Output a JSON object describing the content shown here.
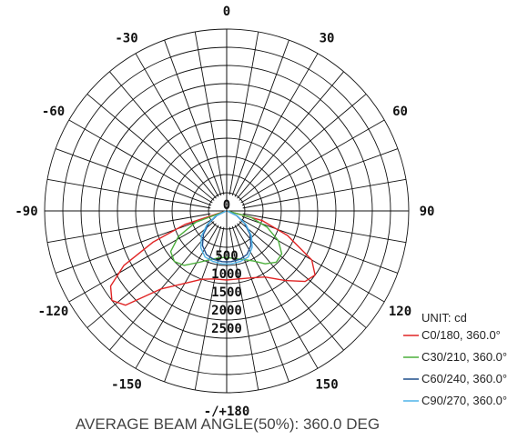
{
  "chart_data": {
    "type": "polar",
    "center_label": "0",
    "radial_ticks": [
      {
        "value": 500,
        "label": "500"
      },
      {
        "value": 1000,
        "label": "1000"
      },
      {
        "value": 1500,
        "label": "1500"
      },
      {
        "value": 2000,
        "label": "2000"
      },
      {
        "value": 2500,
        "label": "2500"
      }
    ],
    "r_max": 2500,
    "angle_labels": [
      {
        "angle": 180,
        "label": "-/+180"
      },
      {
        "angle": 150,
        "label": "150"
      },
      {
        "angle": -150,
        "label": "-150"
      },
      {
        "angle": 120,
        "label": "120"
      },
      {
        "angle": -120,
        "label": "-120"
      },
      {
        "angle": 90,
        "label": "90"
      },
      {
        "angle": -90,
        "label": "-90"
      },
      {
        "angle": 60,
        "label": "60"
      },
      {
        "angle": -60,
        "label": "-60"
      },
      {
        "angle": 30,
        "label": "30"
      },
      {
        "angle": -30,
        "label": "-30"
      },
      {
        "angle": 0,
        "label": "0"
      }
    ],
    "unit_label": "UNIT: cd",
    "series": [
      {
        "name": "C0/180, 360.0°",
        "color": "#e02424",
        "points": [
          [
            -100,
            10
          ],
          [
            -108,
            600
          ],
          [
            -113,
            1100
          ],
          [
            -118,
            1600
          ],
          [
            -123,
            1900
          ],
          [
            -128,
            2000
          ],
          [
            -133,
            1900
          ],
          [
            -140,
            1400
          ],
          [
            -150,
            1150
          ],
          [
            -160,
            1000
          ],
          [
            -170,
            950
          ],
          [
            -180,
            950
          ],
          [
            170,
            950
          ],
          [
            160,
            980
          ],
          [
            150,
            1050
          ],
          [
            140,
            1250
          ],
          [
            132,
            1450
          ],
          [
            126,
            1500
          ],
          [
            120,
            1350
          ],
          [
            112,
            900
          ],
          [
            105,
            500
          ],
          [
            100,
            10
          ]
        ]
      },
      {
        "name": "C30/210, 360.0°",
        "color": "#4caf3c",
        "points": [
          [
            -100,
            10
          ],
          [
            -110,
            450
          ],
          [
            -118,
            750
          ],
          [
            -126,
            950
          ],
          [
            -134,
            1000
          ],
          [
            -142,
            950
          ],
          [
            -152,
            800
          ],
          [
            -162,
            700
          ],
          [
            -172,
            650
          ],
          [
            180,
            640
          ],
          [
            172,
            660
          ],
          [
            162,
            700
          ],
          [
            152,
            780
          ],
          [
            144,
            900
          ],
          [
            136,
            980
          ],
          [
            128,
            960
          ],
          [
            120,
            820
          ],
          [
            112,
            600
          ],
          [
            105,
            350
          ],
          [
            100,
            10
          ]
        ]
      },
      {
        "name": "C60/240, 360.0°",
        "color": "#1f4e8c",
        "points": [
          [
            -100,
            10
          ],
          [
            -115,
            150
          ],
          [
            -125,
            300
          ],
          [
            -135,
            450
          ],
          [
            -145,
            580
          ],
          [
            -155,
            660
          ],
          [
            -165,
            690
          ],
          [
            -175,
            700
          ],
          [
            180,
            700
          ],
          [
            175,
            700
          ],
          [
            165,
            690
          ],
          [
            155,
            660
          ],
          [
            145,
            580
          ],
          [
            135,
            450
          ],
          [
            125,
            300
          ],
          [
            115,
            150
          ],
          [
            100,
            10
          ]
        ]
      },
      {
        "name": "C90/270, 360.0°",
        "color": "#4fb3e8",
        "points": [
          [
            -100,
            10
          ],
          [
            -115,
            170
          ],
          [
            -125,
            330
          ],
          [
            -135,
            490
          ],
          [
            -145,
            620
          ],
          [
            -155,
            700
          ],
          [
            -165,
            720
          ],
          [
            -175,
            730
          ],
          [
            180,
            730
          ],
          [
            175,
            730
          ],
          [
            165,
            720
          ],
          [
            155,
            700
          ],
          [
            145,
            610
          ],
          [
            135,
            480
          ],
          [
            125,
            320
          ],
          [
            115,
            160
          ],
          [
            100,
            10
          ]
        ]
      }
    ],
    "footer": "AVERAGE BEAM ANGLE(50%): 360.0 DEG"
  }
}
